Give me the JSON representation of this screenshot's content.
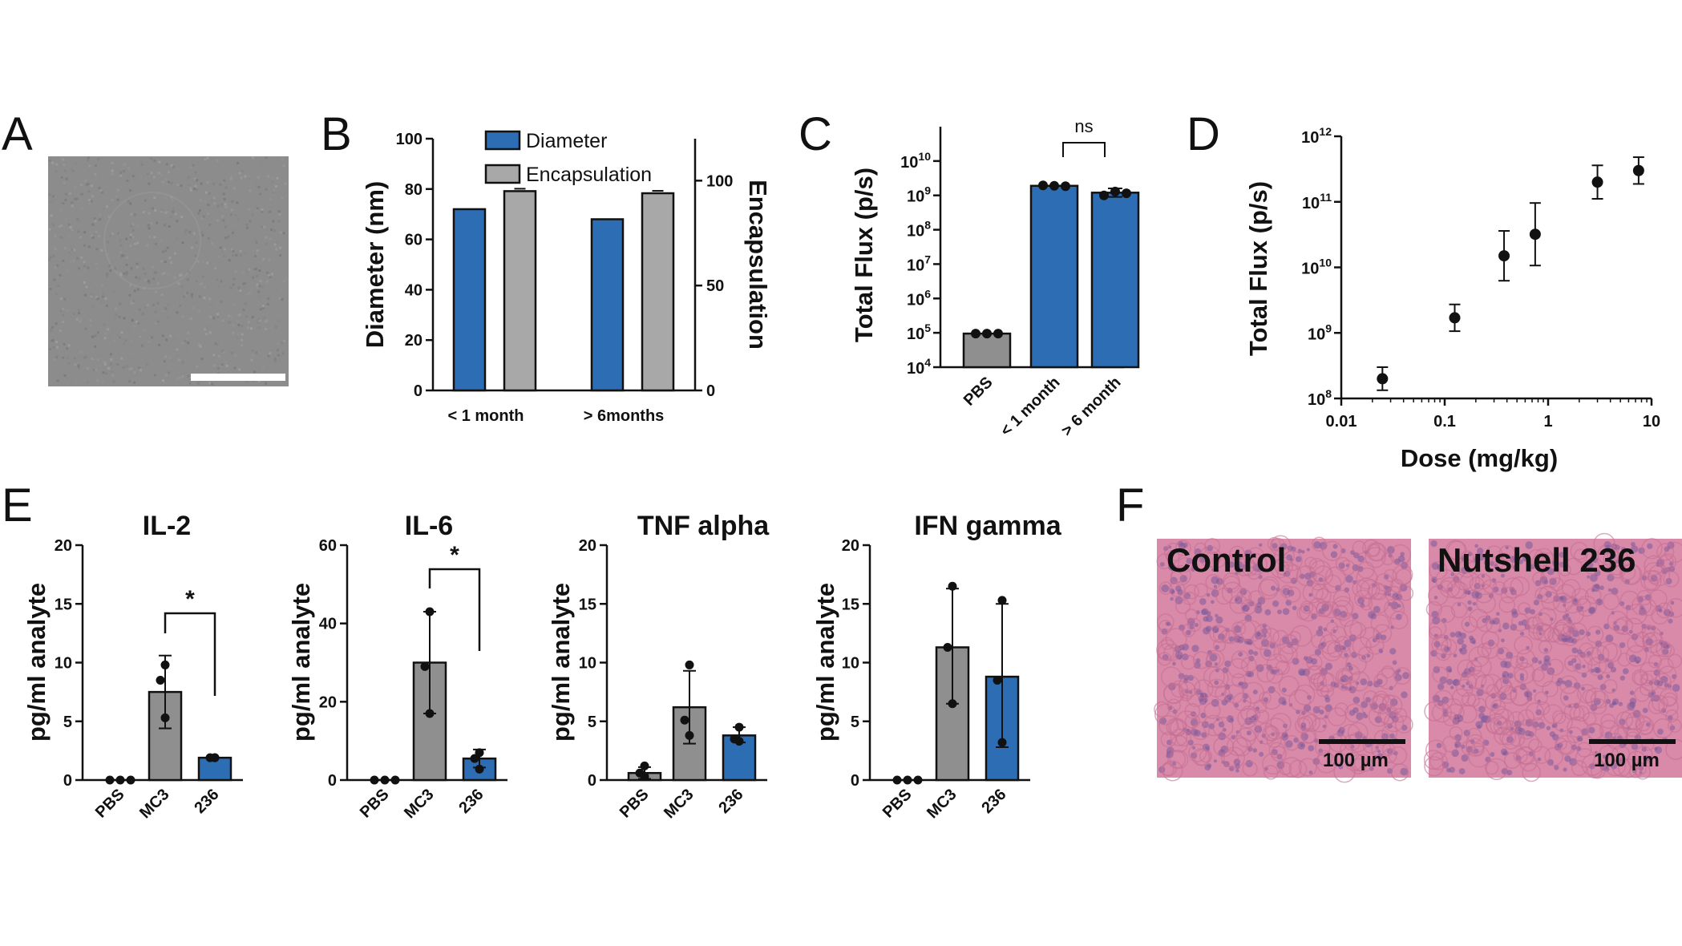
{
  "panel_labels": {
    "a": "A",
    "b": "B",
    "c": "C",
    "d": "D",
    "e": "E",
    "f": "F"
  },
  "colors": {
    "blue": "#2d6db3",
    "gray": "#8f8f8f",
    "gray_light": "#a8a8a8",
    "histo_pink": "#d98aa8",
    "histo_purple": "#7b5a9a",
    "tem_gray": "#8c8c8c"
  },
  "chart_data": [
    {
      "panel": "B",
      "type": "bar",
      "categories": [
        "< 1 month",
        "> 6months"
      ],
      "series": [
        {
          "name": "Diameter",
          "values": [
            72,
            68
          ],
          "axis": "left",
          "color": "#2d6db3"
        },
        {
          "name": "Encapsulation",
          "values": [
            95,
            94
          ],
          "axis": "right",
          "color": "#a8a8a8"
        }
      ],
      "ylabel": "Diameter (nm)",
      "ylabel_right": "Encapsulation",
      "ylim": [
        0,
        100
      ],
      "ylim_right": [
        0,
        120
      ],
      "yticks": [
        "0",
        "20",
        "40",
        "60",
        "80",
        "100"
      ],
      "yticks_right": [
        "0",
        "50",
        "100"
      ],
      "legend_position": "top"
    },
    {
      "panel": "C",
      "type": "bar",
      "categories": [
        "PBS",
        "< 1 month",
        "> 6 month"
      ],
      "values": [
        95000,
        1900000000,
        1200000000
      ],
      "colors": [
        "#8f8f8f",
        "#2d6db3",
        "#2d6db3"
      ],
      "ylabel": "Total  Flux  (p/s)",
      "yscale": "log",
      "ylim": [
        10000,
        100000000000
      ],
      "ytick_base": "10",
      "ytick_exponents": [
        "4",
        "5",
        "6",
        "7",
        "8",
        "9",
        "10"
      ],
      "annotation": "ns"
    },
    {
      "panel": "D",
      "type": "scatter",
      "x": [
        0.025,
        0.125,
        0.375,
        0.75,
        3,
        7.5
      ],
      "y": [
        200000000,
        1700000000,
        15000000000,
        32000000000,
        200000000000,
        300000000000
      ],
      "xlabel": "Dose  (mg/kg)",
      "ylabel": "Total Flux  (p/s)",
      "xscale": "log",
      "yscale": "log",
      "xlim": [
        0.01,
        10
      ],
      "ylim": [
        100000000,
        1000000000000
      ],
      "xticks": [
        "0.01",
        "0.1",
        "1",
        "10"
      ],
      "ytick_base": "10",
      "ytick_exponents": [
        "8",
        "9",
        "10",
        "11",
        "12"
      ]
    },
    {
      "panel": "E",
      "type": "bar",
      "title": "IL-2",
      "categories": [
        "PBS",
        "MC3",
        "236"
      ],
      "values": [
        0,
        7.5,
        1.9
      ],
      "colors": [
        "#8f8f8f",
        "#8f8f8f",
        "#2d6db3"
      ],
      "ylabel": "pg/ml analyte",
      "ylim": [
        0,
        20
      ],
      "yticks": [
        "0",
        "5",
        "10",
        "15",
        "20"
      ],
      "significance": "*"
    },
    {
      "panel": "E",
      "type": "bar",
      "title": "IL-6",
      "categories": [
        "PBS",
        "MC3",
        "236"
      ],
      "values": [
        0,
        30,
        5.5
      ],
      "colors": [
        "#8f8f8f",
        "#8f8f8f",
        "#2d6db3"
      ],
      "ylabel": "pg/ml analyte",
      "ylim": [
        0,
        60
      ],
      "yticks": [
        "0",
        "20",
        "40",
        "60"
      ],
      "significance": "*"
    },
    {
      "panel": "E",
      "type": "bar",
      "title": "TNF alpha",
      "categories": [
        "PBS",
        "MC3",
        "236"
      ],
      "values": [
        0.6,
        6.2,
        3.8
      ],
      "colors": [
        "#8f8f8f",
        "#8f8f8f",
        "#2d6db3"
      ],
      "ylabel": "pg/ml analyte",
      "ylim": [
        0,
        20
      ],
      "yticks": [
        "0",
        "5",
        "10",
        "15",
        "20"
      ]
    },
    {
      "panel": "E",
      "type": "bar",
      "title": "IFN gamma",
      "categories": [
        "PBS",
        "MC3",
        "236"
      ],
      "values": [
        0,
        11.3,
        8.8
      ],
      "colors": [
        "#8f8f8f",
        "#8f8f8f",
        "#2d6db3"
      ],
      "ylabel": "pg/ml analyte",
      "ylim": [
        0,
        20
      ],
      "yticks": [
        "0",
        "5",
        "10",
        "15",
        "20"
      ]
    }
  ],
  "panel_f": {
    "left_label": "Control",
    "right_label": "Nutshell 236",
    "scale_bar_text": "100 µm"
  }
}
